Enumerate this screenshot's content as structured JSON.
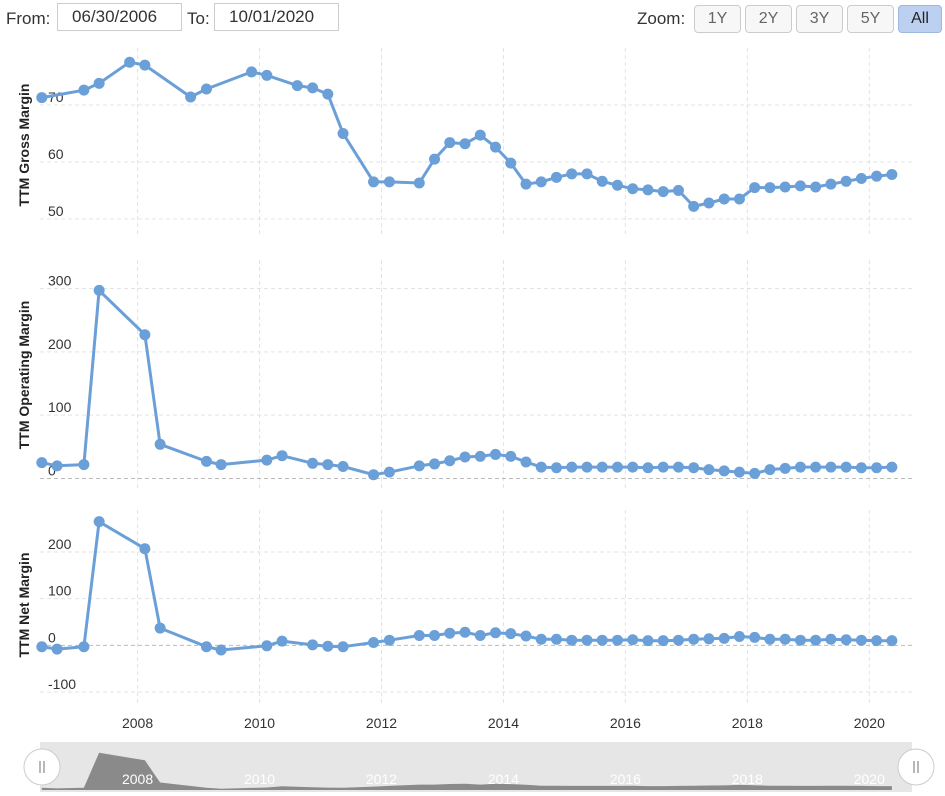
{
  "range": {
    "from_label": "From:",
    "from_value": "06/30/2006",
    "to_label": "To:",
    "to_value": "10/01/2020"
  },
  "zoom": {
    "label": "Zoom:",
    "buttons": [
      "1Y",
      "2Y",
      "3Y",
      "5Y",
      "All"
    ],
    "active": "All"
  },
  "colors": {
    "series": "#6a9fd8",
    "grid": "#e3e3e3",
    "navigator_fill": "#8a8a8a",
    "navigator_bg": "#e6e6e6"
  },
  "chart_data": [
    {
      "type": "line",
      "ylabel": "TTM Gross Margin",
      "yticks": [
        50,
        60,
        70
      ],
      "ylim": [
        47,
        80
      ],
      "xticks": [
        "2008",
        "2010",
        "2012",
        "2014",
        "2016",
        "2018",
        "2020"
      ],
      "xlim": [
        2006.4,
        2020.7
      ],
      "x": [
        2006.43,
        2007.12,
        2007.37,
        2007.87,
        2008.12,
        2008.87,
        2009.13,
        2009.87,
        2010.12,
        2010.62,
        2010.87,
        2011.12,
        2011.37,
        2011.87,
        2012.13,
        2012.62,
        2012.87,
        2013.12,
        2013.37,
        2013.62,
        2013.87,
        2014.12,
        2014.37,
        2014.62,
        2014.87,
        2015.12,
        2015.37,
        2015.62,
        2015.87,
        2016.12,
        2016.37,
        2016.62,
        2016.87,
        2017.12,
        2017.37,
        2017.62,
        2017.87,
        2018.12,
        2018.37,
        2018.62,
        2018.87,
        2019.12,
        2019.37,
        2019.62,
        2019.87,
        2020.12,
        2020.37
      ],
      "series": [
        {
          "values": [
            71.3,
            72.6,
            73.8,
            77.5,
            77.0,
            71.4,
            72.8,
            75.8,
            75.2,
            73.4,
            73.0,
            71.9,
            65.0,
            56.5,
            56.5,
            56.3,
            60.5,
            63.4,
            63.2,
            64.7,
            62.6,
            59.8,
            56.1,
            56.5,
            57.3,
            57.9,
            57.9,
            56.6,
            55.9,
            55.3,
            55.1,
            54.8,
            55.0,
            52.2,
            52.8,
            53.5,
            53.5,
            55.5,
            55.5,
            55.6,
            55.8,
            55.6,
            56.1,
            56.6,
            57.1,
            57.5,
            57.8
          ]
        }
      ]
    },
    {
      "type": "line",
      "ylabel": "TTM Operating Margin",
      "yticks": [
        0,
        100,
        200,
        300
      ],
      "ylim": [
        -15,
        345
      ],
      "xticks": [
        "2008",
        "2010",
        "2012",
        "2014",
        "2016",
        "2018",
        "2020"
      ],
      "xlim": [
        2006.4,
        2020.7
      ],
      "x": [
        2006.43,
        2006.68,
        2007.12,
        2007.37,
        2008.12,
        2008.37,
        2009.13,
        2009.37,
        2010.12,
        2010.37,
        2010.87,
        2011.12,
        2011.37,
        2011.87,
        2012.13,
        2012.62,
        2012.87,
        2013.12,
        2013.37,
        2013.62,
        2013.87,
        2014.12,
        2014.37,
        2014.62,
        2014.87,
        2015.12,
        2015.37,
        2015.62,
        2015.87,
        2016.12,
        2016.37,
        2016.62,
        2016.87,
        2017.12,
        2017.37,
        2017.62,
        2017.87,
        2018.12,
        2018.37,
        2018.62,
        2018.87,
        2019.12,
        2019.37,
        2019.62,
        2019.87,
        2020.12,
        2020.37
      ],
      "series": [
        {
          "values": [
            25,
            20,
            22,
            297,
            227,
            54,
            27,
            22,
            29,
            36,
            24,
            22,
            19,
            6,
            10,
            20,
            23,
            28,
            34,
            35,
            38,
            35,
            26,
            18,
            17,
            18,
            18,
            18,
            18,
            18,
            17,
            18,
            18,
            17,
            14,
            12,
            10,
            8,
            14,
            16,
            18,
            18,
            18,
            18,
            17,
            17,
            18
          ]
        }
      ]
    },
    {
      "type": "line",
      "ylabel": "TTM Net Margin",
      "yticks": [
        -100,
        0,
        100,
        200
      ],
      "ylim": [
        -130,
        290
      ],
      "xticks": [
        "2008",
        "2010",
        "2012",
        "2014",
        "2016",
        "2018",
        "2020"
      ],
      "xlim": [
        2006.4,
        2020.7
      ],
      "x": [
        2006.43,
        2006.68,
        2007.12,
        2007.37,
        2008.12,
        2008.37,
        2009.13,
        2009.37,
        2010.12,
        2010.37,
        2010.87,
        2011.12,
        2011.37,
        2011.87,
        2012.13,
        2012.62,
        2012.87,
        2013.12,
        2013.37,
        2013.62,
        2013.87,
        2014.12,
        2014.37,
        2014.62,
        2014.87,
        2015.12,
        2015.37,
        2015.62,
        2015.87,
        2016.12,
        2016.37,
        2016.62,
        2016.87,
        2017.12,
        2017.37,
        2017.62,
        2017.87,
        2018.12,
        2018.37,
        2018.62,
        2018.87,
        2019.12,
        2019.37,
        2019.62,
        2019.87,
        2020.12,
        2020.37
      ],
      "series": [
        {
          "values": [
            -3,
            -8,
            -3,
            265,
            207,
            37,
            -3,
            -10,
            -1,
            9,
            1,
            -2,
            -3,
            6,
            11,
            21,
            21,
            26,
            28,
            21,
            27,
            25,
            20,
            13,
            13,
            11,
            11,
            11,
            11,
            12,
            10,
            10,
            11,
            13,
            14,
            15,
            19,
            17,
            13,
            13,
            11,
            11,
            13,
            12,
            11,
            10,
            10
          ]
        }
      ]
    }
  ],
  "navigator": {
    "ticks": [
      "2008",
      "2010",
      "2012",
      "2014",
      "2016",
      "2018",
      "2020"
    ],
    "left_handle_icon": "grip-icon",
    "right_handle_icon": "grip-icon"
  }
}
